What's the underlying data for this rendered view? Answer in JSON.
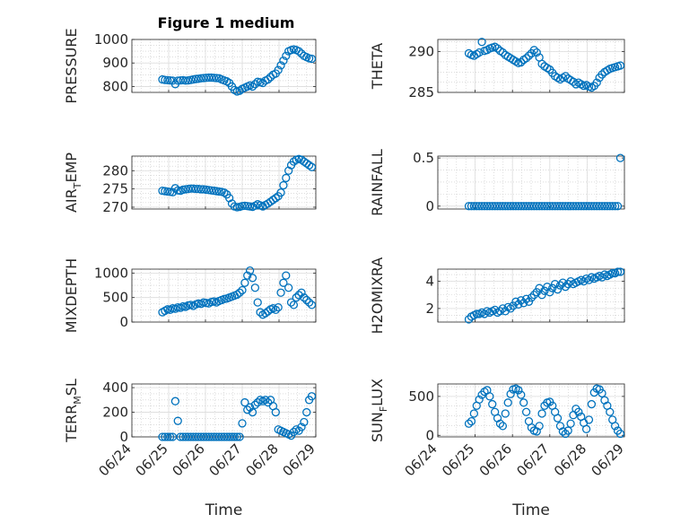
{
  "figure": {
    "title": "Figure 1 medium",
    "marker_color": "#0072BD",
    "axis_color": "#262626",
    "grid_color": "#c8c8c8"
  },
  "chart_data": [
    {
      "type": "scatter",
      "title": "Figure 1 medium",
      "ylabel": "PRESSURE",
      "ylim": [
        775,
        1000
      ],
      "yticks": [
        800,
        900,
        1000
      ],
      "xlim": [
        "06/24",
        "06/29"
      ],
      "grid": true,
      "x": [
        24.83,
        24.9,
        24.97,
        25.04,
        25.11,
        25.18,
        25.25,
        25.32,
        25.39,
        25.46,
        25.53,
        25.6,
        25.67,
        25.74,
        25.81,
        25.88,
        25.95,
        26.02,
        26.09,
        26.16,
        26.23,
        26.3,
        26.37,
        26.44,
        26.51,
        26.58,
        26.65,
        26.72,
        26.79,
        26.86,
        26.93,
        27.0,
        27.07,
        27.14,
        27.21,
        27.28,
        27.35,
        27.42,
        27.49,
        27.56,
        27.63,
        27.7,
        27.77,
        27.84,
        27.91,
        27.98,
        28.05,
        28.12,
        28.19,
        28.26,
        28.33,
        28.4,
        28.47,
        28.54,
        28.61,
        28.68,
        28.75,
        28.82,
        28.89
      ],
      "y": [
        830,
        828,
        827,
        826,
        825,
        810,
        825,
        826,
        827,
        825,
        826,
        828,
        830,
        832,
        833,
        835,
        836,
        837,
        838,
        838,
        837,
        836,
        835,
        830,
        826,
        822,
        815,
        800,
        785,
        779,
        782,
        790,
        795,
        800,
        805,
        800,
        810,
        820,
        818,
        815,
        825,
        830,
        840,
        850,
        855,
        870,
        890,
        910,
        930,
        950,
        955,
        958,
        955,
        950,
        940,
        930,
        925,
        920,
        918
      ]
    },
    {
      "type": "scatter",
      "ylabel": "THETA",
      "ylim": [
        285,
        291.5
      ],
      "yticks": [
        285,
        290
      ],
      "xlim": [
        "06/24",
        "06/29"
      ],
      "grid": true,
      "x": [
        24.83,
        24.9,
        24.97,
        25.04,
        25.11,
        25.18,
        25.25,
        25.32,
        25.39,
        25.46,
        25.53,
        25.6,
        25.67,
        25.74,
        25.81,
        25.88,
        25.95,
        26.02,
        26.09,
        26.16,
        26.23,
        26.3,
        26.37,
        26.44,
        26.51,
        26.58,
        26.65,
        26.72,
        26.79,
        26.86,
        26.93,
        27.0,
        27.07,
        27.14,
        27.21,
        27.28,
        27.35,
        27.42,
        27.49,
        27.56,
        27.63,
        27.7,
        27.77,
        27.84,
        27.91,
        27.98,
        28.05,
        28.12,
        28.19,
        28.26,
        28.33,
        28.4,
        28.47,
        28.54,
        28.61,
        28.68,
        28.75,
        28.82,
        28.89
      ],
      "y": [
        289.8,
        289.6,
        289.5,
        289.7,
        289.9,
        291.2,
        290.1,
        290.2,
        290.4,
        290.5,
        290.6,
        290.4,
        290.1,
        289.9,
        289.6,
        289.4,
        289.2,
        289.0,
        288.8,
        288.6,
        288.7,
        289.0,
        289.2,
        289.5,
        289.8,
        290.2,
        289.9,
        289.3,
        288.5,
        288.2,
        288.0,
        287.8,
        287.4,
        287.0,
        286.8,
        286.6,
        286.8,
        287.0,
        286.7,
        286.5,
        286.3,
        286.0,
        286.2,
        286.0,
        285.8,
        285.9,
        285.7,
        285.6,
        285.8,
        286.2,
        286.8,
        287.2,
        287.5,
        287.7,
        287.9,
        288.0,
        288.1,
        288.2,
        288.3
      ]
    },
    {
      "type": "scatter",
      "ylabel": "AIR_TEMP",
      "ylim": [
        269.5,
        284
      ],
      "yticks": [
        270,
        275,
        280
      ],
      "xlim": [
        "06/24",
        "06/29"
      ],
      "grid": true,
      "x": [
        24.83,
        24.9,
        24.97,
        25.04,
        25.11,
        25.18,
        25.25,
        25.32,
        25.39,
        25.46,
        25.53,
        25.6,
        25.67,
        25.74,
        25.81,
        25.88,
        25.95,
        26.02,
        26.09,
        26.16,
        26.23,
        26.3,
        26.37,
        26.44,
        26.51,
        26.58,
        26.65,
        26.72,
        26.79,
        26.86,
        26.93,
        27.0,
        27.07,
        27.14,
        27.21,
        27.28,
        27.35,
        27.42,
        27.49,
        27.56,
        27.63,
        27.7,
        27.77,
        27.84,
        27.91,
        27.98,
        28.05,
        28.12,
        28.19,
        28.26,
        28.33,
        28.4,
        28.47,
        28.54,
        28.61,
        28.68,
        28.75,
        28.82,
        28.89
      ],
      "y": [
        274.5,
        274.4,
        274.3,
        274.2,
        274.1,
        275.2,
        274.6,
        274.5,
        274.8,
        274.9,
        275.0,
        275.1,
        275.1,
        275.0,
        275.0,
        274.9,
        274.9,
        274.8,
        274.7,
        274.6,
        274.5,
        274.4,
        274.3,
        274.2,
        274.0,
        273.5,
        272.5,
        271.0,
        270.2,
        270.0,
        270.1,
        270.3,
        270.4,
        270.3,
        270.2,
        270.1,
        270.4,
        270.8,
        270.5,
        270.2,
        270.6,
        271.0,
        271.5,
        272.0,
        272.5,
        273.0,
        274.0,
        276.0,
        278.0,
        280.0,
        281.5,
        282.5,
        283.0,
        283.2,
        283.0,
        282.5,
        282.0,
        281.5,
        281.0
      ]
    },
    {
      "type": "scatter",
      "ylabel": "RAINFALL",
      "ylim": [
        -0.03,
        0.52
      ],
      "yticks": [
        0,
        0.5
      ],
      "xlim": [
        "06/24",
        "06/29"
      ],
      "grid": true,
      "x": [
        24.83,
        24.9,
        24.97,
        25.04,
        25.11,
        25.18,
        25.25,
        25.32,
        25.39,
        25.46,
        25.53,
        25.6,
        25.67,
        25.74,
        25.81,
        25.88,
        25.95,
        26.02,
        26.09,
        26.16,
        26.23,
        26.3,
        26.37,
        26.44,
        26.51,
        26.58,
        26.65,
        26.72,
        26.79,
        26.86,
        26.93,
        27.0,
        27.07,
        27.14,
        27.21,
        27.28,
        27.35,
        27.42,
        27.49,
        27.56,
        27.63,
        27.7,
        27.77,
        27.84,
        27.91,
        27.98,
        28.05,
        28.12,
        28.19,
        28.26,
        28.33,
        28.4,
        28.47,
        28.54,
        28.61,
        28.68,
        28.75,
        28.82,
        28.89
      ],
      "y": [
        0,
        0,
        0,
        0,
        0,
        0,
        0,
        0,
        0,
        0,
        0,
        0,
        0,
        0,
        0,
        0,
        0,
        0,
        0,
        0,
        0,
        0,
        0,
        0,
        0,
        0,
        0,
        0,
        0,
        0,
        0,
        0,
        0,
        0,
        0,
        0,
        0,
        0,
        0,
        0,
        0,
        0,
        0,
        0,
        0,
        0,
        0,
        0,
        0,
        0,
        0,
        0,
        0,
        0,
        0,
        0,
        0,
        0,
        0.5
      ]
    },
    {
      "type": "scatter",
      "ylabel": "MIXDEPTH",
      "ylim": [
        0,
        1080
      ],
      "yticks": [
        0,
        500,
        1000
      ],
      "xlim": [
        "06/24",
        "06/29"
      ],
      "grid": true,
      "x": [
        24.83,
        24.9,
        24.97,
        25.04,
        25.11,
        25.18,
        25.25,
        25.32,
        25.39,
        25.46,
        25.53,
        25.6,
        25.67,
        25.74,
        25.81,
        25.88,
        25.95,
        26.02,
        26.09,
        26.16,
        26.23,
        26.3,
        26.37,
        26.44,
        26.51,
        26.58,
        26.65,
        26.72,
        26.79,
        26.86,
        26.93,
        27.0,
        27.07,
        27.14,
        27.21,
        27.28,
        27.35,
        27.42,
        27.49,
        27.56,
        27.63,
        27.7,
        27.77,
        27.84,
        27.91,
        27.98,
        28.05,
        28.12,
        28.19,
        28.26,
        28.33,
        28.4,
        28.47,
        28.54,
        28.61,
        28.68,
        28.75,
        28.82,
        28.89
      ],
      "y": [
        200,
        230,
        260,
        250,
        280,
        270,
        300,
        290,
        320,
        310,
        340,
        350,
        330,
        360,
        380,
        370,
        400,
        390,
        380,
        410,
        420,
        400,
        430,
        450,
        470,
        480,
        500,
        520,
        540,
        560,
        600,
        650,
        800,
        950,
        1050,
        900,
        700,
        400,
        200,
        150,
        180,
        220,
        260,
        280,
        250,
        300,
        600,
        800,
        950,
        700,
        400,
        350,
        500,
        550,
        600,
        500,
        450,
        400,
        350
      ]
    },
    {
      "type": "scatter",
      "ylabel": "H2OMIXRA",
      "ylim": [
        1,
        4.9
      ],
      "yticks": [
        2,
        4
      ],
      "xlim": [
        "06/24",
        "06/29"
      ],
      "grid": true,
      "x": [
        24.83,
        24.9,
        24.97,
        25.04,
        25.11,
        25.18,
        25.25,
        25.32,
        25.39,
        25.46,
        25.53,
        25.6,
        25.67,
        25.74,
        25.81,
        25.88,
        25.95,
        26.02,
        26.09,
        26.16,
        26.23,
        26.3,
        26.37,
        26.44,
        26.51,
        26.58,
        26.65,
        26.72,
        26.79,
        26.86,
        26.93,
        27.0,
        27.07,
        27.14,
        27.21,
        27.28,
        27.35,
        27.42,
        27.49,
        27.56,
        27.63,
        27.7,
        27.77,
        27.84,
        27.91,
        27.98,
        28.05,
        28.12,
        28.19,
        28.26,
        28.33,
        28.4,
        28.47,
        28.54,
        28.61,
        28.68,
        28.75,
        28.82,
        28.89
      ],
      "y": [
        1.2,
        1.4,
        1.5,
        1.6,
        1.6,
        1.7,
        1.6,
        1.8,
        1.7,
        1.8,
        1.9,
        1.7,
        1.8,
        2.0,
        1.8,
        2.1,
        2.0,
        2.2,
        2.5,
        2.3,
        2.6,
        2.4,
        2.7,
        2.5,
        2.8,
        3.0,
        3.2,
        3.5,
        3.0,
        3.3,
        3.6,
        3.2,
        3.5,
        3.8,
        3.4,
        3.7,
        3.9,
        3.6,
        3.8,
        4.0,
        3.8,
        3.9,
        4.0,
        4.1,
        4.0,
        4.2,
        4.1,
        4.3,
        4.2,
        4.3,
        4.4,
        4.3,
        4.5,
        4.4,
        4.5,
        4.6,
        4.6,
        4.7,
        4.7
      ]
    },
    {
      "type": "scatter",
      "ylabel": "TERR_MSL",
      "ylim": [
        0,
        430
      ],
      "yticks": [
        0,
        200,
        400
      ],
      "xlim": [
        "06/24",
        "06/29"
      ],
      "xticks": [
        "06/24",
        "06/25",
        "06/26",
        "06/27",
        "06/28",
        "06/29"
      ],
      "xlabel": "Time",
      "grid": true,
      "x": [
        24.83,
        24.9,
        24.97,
        25.04,
        25.11,
        25.18,
        25.25,
        25.32,
        25.39,
        25.46,
        25.53,
        25.6,
        25.67,
        25.74,
        25.81,
        25.88,
        25.95,
        26.02,
        26.09,
        26.16,
        26.23,
        26.3,
        26.37,
        26.44,
        26.51,
        26.58,
        26.65,
        26.72,
        26.79,
        26.86,
        26.93,
        27.0,
        27.07,
        27.14,
        27.21,
        27.28,
        27.35,
        27.42,
        27.49,
        27.56,
        27.63,
        27.7,
        27.77,
        27.84,
        27.91,
        27.98,
        28.05,
        28.12,
        28.19,
        28.26,
        28.33,
        28.4,
        28.47,
        28.54,
        28.61,
        28.68,
        28.75,
        28.82,
        28.89
      ],
      "y": [
        0,
        0,
        0,
        0,
        0,
        290,
        130,
        0,
        0,
        0,
        0,
        0,
        0,
        0,
        0,
        0,
        0,
        0,
        0,
        0,
        0,
        0,
        0,
        0,
        0,
        0,
        0,
        0,
        0,
        0,
        0,
        110,
        280,
        220,
        240,
        200,
        260,
        280,
        300,
        290,
        300,
        280,
        300,
        250,
        200,
        60,
        50,
        40,
        30,
        20,
        10,
        40,
        60,
        50,
        80,
        120,
        200,
        300,
        330
      ]
    },
    {
      "type": "scatter",
      "ylabel": "SUN_FLUX",
      "ylim": [
        -20,
        660
      ],
      "yticks": [
        0,
        500
      ],
      "xlim": [
        "06/24",
        "06/29"
      ],
      "xticks": [
        "06/24",
        "06/25",
        "06/26",
        "06/27",
        "06/28",
        "06/29"
      ],
      "xlabel": "Time",
      "grid": true,
      "x": [
        24.83,
        24.9,
        24.97,
        25.04,
        25.11,
        25.18,
        25.25,
        25.32,
        25.39,
        25.46,
        25.53,
        25.6,
        25.67,
        25.74,
        25.81,
        25.88,
        25.95,
        26.02,
        26.09,
        26.16,
        26.23,
        26.3,
        26.37,
        26.44,
        26.51,
        26.58,
        26.65,
        26.72,
        26.79,
        26.86,
        26.93,
        27.0,
        27.07,
        27.14,
        27.21,
        27.28,
        27.35,
        27.42,
        27.49,
        27.56,
        27.63,
        27.7,
        27.77,
        27.84,
        27.91,
        27.98,
        28.05,
        28.12,
        28.19,
        28.26,
        28.33,
        28.4,
        28.47,
        28.54,
        28.61,
        28.68,
        28.75,
        28.82,
        28.89
      ],
      "y": [
        150,
        180,
        280,
        380,
        460,
        520,
        560,
        580,
        500,
        400,
        300,
        220,
        150,
        120,
        280,
        420,
        530,
        590,
        600,
        580,
        520,
        420,
        300,
        180,
        100,
        60,
        50,
        120,
        280,
        380,
        420,
        430,
        380,
        300,
        220,
        120,
        50,
        20,
        60,
        150,
        260,
        340,
        300,
        240,
        160,
        80,
        200,
        400,
        550,
        600,
        590,
        540,
        450,
        380,
        300,
        200,
        120,
        60,
        20
      ]
    }
  ]
}
